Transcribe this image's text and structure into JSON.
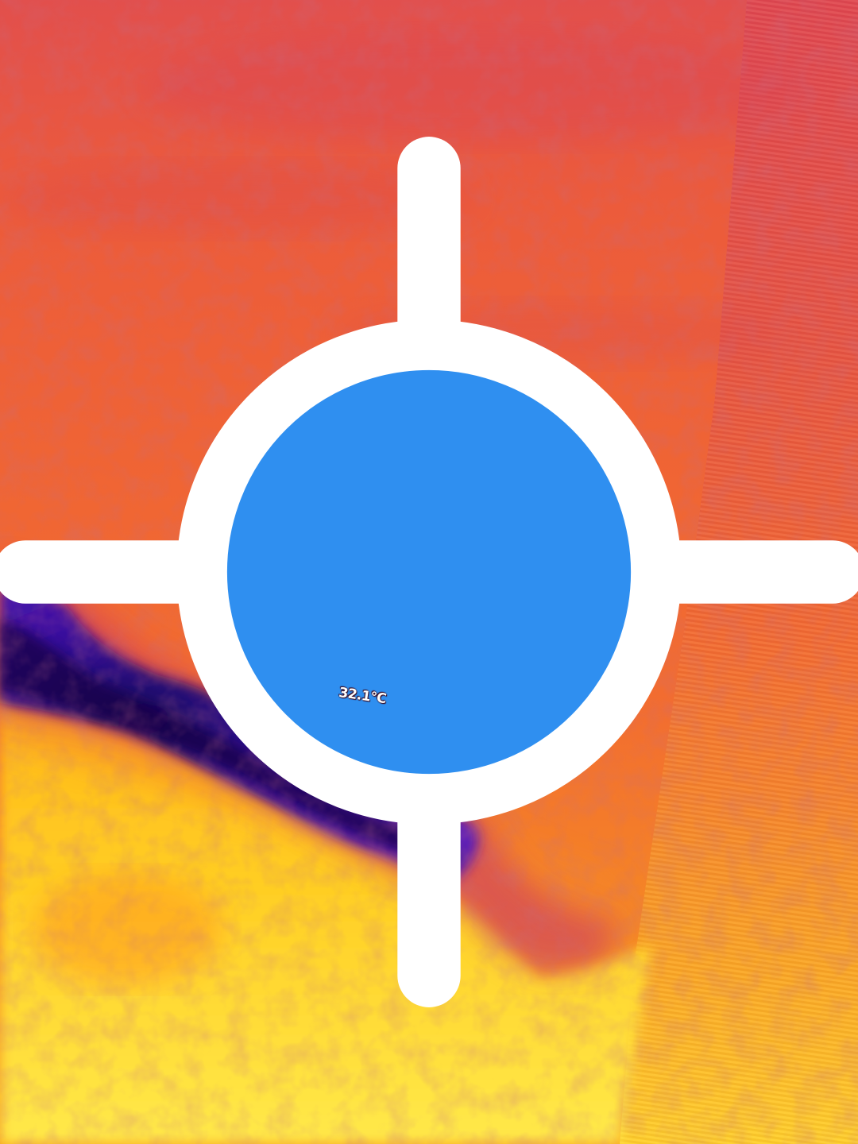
{
  "thermal_image": {
    "palette": "iron",
    "palette_colors": {
      "hot_light": "#ffe233",
      "hot": "#ffc21a",
      "warm": "#ff8a1f",
      "mid": "#ef5d33",
      "cool": "#de4a4e",
      "cold": "#4a1bb0",
      "coldest": "#1a0560"
    }
  },
  "spot_measurement": {
    "icon": "crosshair-icon",
    "marker_color": "#2f8ff0",
    "temperature": "32.1°C"
  }
}
